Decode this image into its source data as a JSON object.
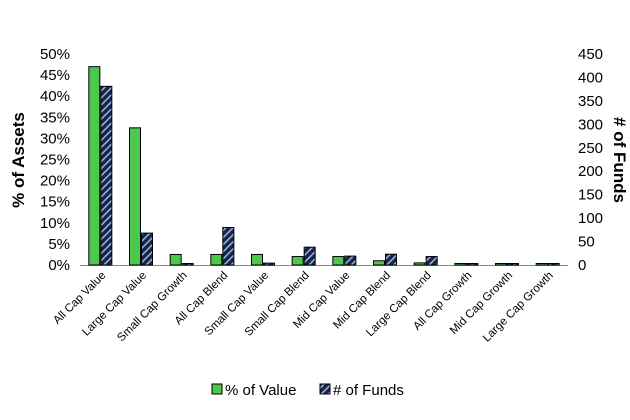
{
  "chart_data": {
    "type": "bar",
    "categories": [
      "All Cap Value",
      "Large Cap Value",
      "Small Cap Growth",
      "All Cap Blend",
      "Small Cap Value",
      "Small Cap Blend",
      "Mid Cap Value",
      "Mid Cap Blend",
      "Large Cap Blend",
      "All Cap Growth",
      "Mid Cap Growth",
      "Large Cap Growth"
    ],
    "series": [
      {
        "name": "% of Value",
        "axis": "left",
        "color": "#4cc94c",
        "values": [
          0.47,
          0.325,
          0.025,
          0.025,
          0.025,
          0.02,
          0.02,
          0.01,
          0.005,
          0.0,
          0.0,
          0.0
        ]
      },
      {
        "name": "# of Funds",
        "axis": "right",
        "color": "#1a2340",
        "pattern": "diagonal-stripes",
        "values": [
          381,
          68,
          3,
          80,
          4,
          38,
          19,
          23,
          18,
          3,
          3,
          3
        ]
      }
    ],
    "y_left": {
      "label": "% of Assets",
      "ylim": [
        0,
        0.5
      ],
      "ticks": [
        0,
        0.05,
        0.1,
        0.15,
        0.2,
        0.25,
        0.3,
        0.35,
        0.4,
        0.45,
        0.5
      ],
      "tick_labels": [
        "0%",
        "5%",
        "10%",
        "15%",
        "20%",
        "25%",
        "30%",
        "35%",
        "40%",
        "45%",
        "50%"
      ]
    },
    "y_right": {
      "label": "# of Funds",
      "ylim": [
        0,
        450
      ],
      "ticks": [
        0,
        50,
        100,
        150,
        200,
        250,
        300,
        350,
        400,
        450
      ],
      "tick_labels": [
        "0",
        "50",
        "100",
        "150",
        "200",
        "250",
        "300",
        "350",
        "400",
        "450"
      ]
    },
    "grid": false,
    "legend": {
      "position": "bottom",
      "entries": [
        "% of Value",
        "# of Funds"
      ]
    }
  }
}
